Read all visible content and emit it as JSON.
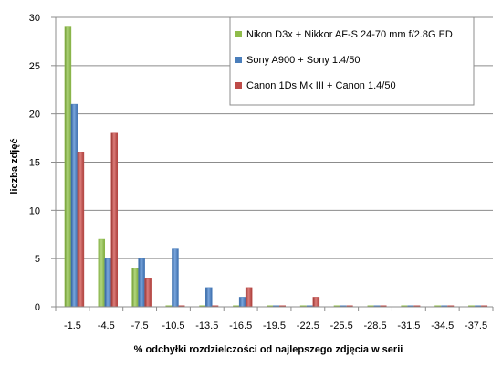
{
  "chart_data": {
    "type": "bar",
    "title": "",
    "xlabel": "% odchyłki  rozdzielczości  od najlepszego  zdjęcia  w serii",
    "ylabel": "liczba zdjęć",
    "ylim": [
      0,
      30
    ],
    "yticks": [
      "0",
      "5",
      "10",
      "15",
      "20",
      "25",
      "30"
    ],
    "grid": true,
    "legend_position": "top-right",
    "categories": [
      "-1.5",
      "-4.5",
      "-7.5",
      "-10.5",
      "-13.5",
      "-16.5",
      "-19.5",
      "-22.5",
      "-25.5",
      "-28.5",
      "-31.5",
      "-34.5",
      "-37.5"
    ],
    "series": [
      {
        "name": "Nikon D3x + Nikkor  AF-S 24-70 mm f/2.8G ED",
        "color": "#8fbc4a",
        "values": [
          29,
          7,
          4,
          0,
          0,
          0,
          0,
          0,
          0,
          0,
          0,
          0,
          0
        ]
      },
      {
        "name": "Sony A900 + Sony 1.4/50",
        "color": "#4a7ebb",
        "values": [
          21,
          5,
          5,
          6,
          2,
          1,
          0,
          0,
          0,
          0,
          0,
          0,
          0
        ]
      },
      {
        "name": "Canon 1Ds Mk III + Canon 1.4/50",
        "color": "#be4b48",
        "values": [
          16,
          18,
          3,
          0,
          0,
          2,
          0,
          1,
          0,
          0,
          0,
          0,
          0
        ]
      }
    ]
  }
}
